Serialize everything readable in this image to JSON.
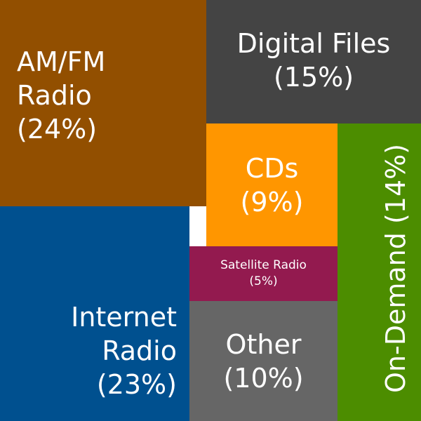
{
  "chart_data": {
    "type": "treemap",
    "items": [
      {
        "name": "AM/FM Radio",
        "name_lines": [
          "AM/FM",
          "Radio"
        ],
        "value_label": "(24%)",
        "value": 24,
        "color": "#924F00"
      },
      {
        "name": "Digital Files",
        "name_lines": [
          "Digital Files"
        ],
        "value_label": "(15%)",
        "value": 15,
        "color": "#444444"
      },
      {
        "name": "CDs",
        "name_lines": [
          "CDs"
        ],
        "value_label": "(9%)",
        "value": 9,
        "color": "#FF9600"
      },
      {
        "name": "On-Demand",
        "name_lines": [
          "On-Demand"
        ],
        "value_label": "(14%)",
        "value": 14,
        "color": "#4C8D00"
      },
      {
        "name": "Satellite Radio",
        "name_lines": [
          "Satellite Radio"
        ],
        "value_label": "(5%)",
        "value": 5,
        "color": "#931A4F"
      },
      {
        "name": "Internet Radio",
        "name_lines": [
          "Internet",
          "Radio"
        ],
        "value_label": "(23%)",
        "value": 23,
        "color": "#00508F"
      },
      {
        "name": "Other",
        "name_lines": [
          "Other"
        ],
        "value_label": "(10%)",
        "value": 10,
        "color": "#666666"
      }
    ]
  }
}
